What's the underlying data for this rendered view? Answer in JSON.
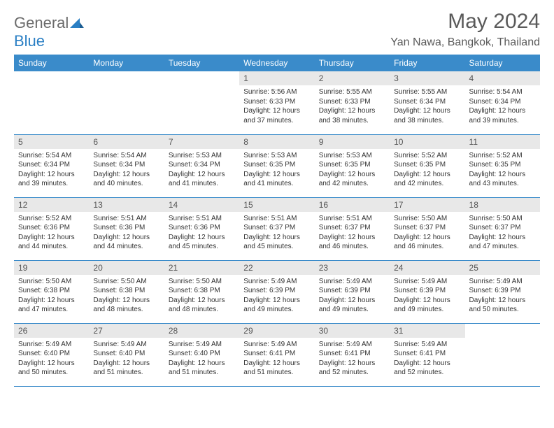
{
  "brand": {
    "part1": "General",
    "part2": "Blue"
  },
  "title": "May 2024",
  "location": "Yan Nawa, Bangkok, Thailand",
  "colors": {
    "header_bg": "#3a8bca",
    "header_text": "#ffffff",
    "daynum_bg": "#e8e8e8",
    "border": "#3a8bca",
    "brand_gray": "#6a6a6a",
    "brand_blue": "#2a7fc4"
  },
  "day_labels": [
    "Sunday",
    "Monday",
    "Tuesday",
    "Wednesday",
    "Thursday",
    "Friday",
    "Saturday"
  ],
  "weeks": [
    [
      {
        "blank": true
      },
      {
        "blank": true
      },
      {
        "blank": true
      },
      {
        "day": "1",
        "sunrise": "5:56 AM",
        "sunset": "6:33 PM",
        "daylight": "12 hours and 37 minutes."
      },
      {
        "day": "2",
        "sunrise": "5:55 AM",
        "sunset": "6:33 PM",
        "daylight": "12 hours and 38 minutes."
      },
      {
        "day": "3",
        "sunrise": "5:55 AM",
        "sunset": "6:34 PM",
        "daylight": "12 hours and 38 minutes."
      },
      {
        "day": "4",
        "sunrise": "5:54 AM",
        "sunset": "6:34 PM",
        "daylight": "12 hours and 39 minutes."
      }
    ],
    [
      {
        "day": "5",
        "sunrise": "5:54 AM",
        "sunset": "6:34 PM",
        "daylight": "12 hours and 39 minutes."
      },
      {
        "day": "6",
        "sunrise": "5:54 AM",
        "sunset": "6:34 PM",
        "daylight": "12 hours and 40 minutes."
      },
      {
        "day": "7",
        "sunrise": "5:53 AM",
        "sunset": "6:34 PM",
        "daylight": "12 hours and 41 minutes."
      },
      {
        "day": "8",
        "sunrise": "5:53 AM",
        "sunset": "6:35 PM",
        "daylight": "12 hours and 41 minutes."
      },
      {
        "day": "9",
        "sunrise": "5:53 AM",
        "sunset": "6:35 PM",
        "daylight": "12 hours and 42 minutes."
      },
      {
        "day": "10",
        "sunrise": "5:52 AM",
        "sunset": "6:35 PM",
        "daylight": "12 hours and 42 minutes."
      },
      {
        "day": "11",
        "sunrise": "5:52 AM",
        "sunset": "6:35 PM",
        "daylight": "12 hours and 43 minutes."
      }
    ],
    [
      {
        "day": "12",
        "sunrise": "5:52 AM",
        "sunset": "6:36 PM",
        "daylight": "12 hours and 44 minutes."
      },
      {
        "day": "13",
        "sunrise": "5:51 AM",
        "sunset": "6:36 PM",
        "daylight": "12 hours and 44 minutes."
      },
      {
        "day": "14",
        "sunrise": "5:51 AM",
        "sunset": "6:36 PM",
        "daylight": "12 hours and 45 minutes."
      },
      {
        "day": "15",
        "sunrise": "5:51 AM",
        "sunset": "6:37 PM",
        "daylight": "12 hours and 45 minutes."
      },
      {
        "day": "16",
        "sunrise": "5:51 AM",
        "sunset": "6:37 PM",
        "daylight": "12 hours and 46 minutes."
      },
      {
        "day": "17",
        "sunrise": "5:50 AM",
        "sunset": "6:37 PM",
        "daylight": "12 hours and 46 minutes."
      },
      {
        "day": "18",
        "sunrise": "5:50 AM",
        "sunset": "6:37 PM",
        "daylight": "12 hours and 47 minutes."
      }
    ],
    [
      {
        "day": "19",
        "sunrise": "5:50 AM",
        "sunset": "6:38 PM",
        "daylight": "12 hours and 47 minutes."
      },
      {
        "day": "20",
        "sunrise": "5:50 AM",
        "sunset": "6:38 PM",
        "daylight": "12 hours and 48 minutes."
      },
      {
        "day": "21",
        "sunrise": "5:50 AM",
        "sunset": "6:38 PM",
        "daylight": "12 hours and 48 minutes."
      },
      {
        "day": "22",
        "sunrise": "5:49 AM",
        "sunset": "6:39 PM",
        "daylight": "12 hours and 49 minutes."
      },
      {
        "day": "23",
        "sunrise": "5:49 AM",
        "sunset": "6:39 PM",
        "daylight": "12 hours and 49 minutes."
      },
      {
        "day": "24",
        "sunrise": "5:49 AM",
        "sunset": "6:39 PM",
        "daylight": "12 hours and 49 minutes."
      },
      {
        "day": "25",
        "sunrise": "5:49 AM",
        "sunset": "6:39 PM",
        "daylight": "12 hours and 50 minutes."
      }
    ],
    [
      {
        "day": "26",
        "sunrise": "5:49 AM",
        "sunset": "6:40 PM",
        "daylight": "12 hours and 50 minutes."
      },
      {
        "day": "27",
        "sunrise": "5:49 AM",
        "sunset": "6:40 PM",
        "daylight": "12 hours and 51 minutes."
      },
      {
        "day": "28",
        "sunrise": "5:49 AM",
        "sunset": "6:40 PM",
        "daylight": "12 hours and 51 minutes."
      },
      {
        "day": "29",
        "sunrise": "5:49 AM",
        "sunset": "6:41 PM",
        "daylight": "12 hours and 51 minutes."
      },
      {
        "day": "30",
        "sunrise": "5:49 AM",
        "sunset": "6:41 PM",
        "daylight": "12 hours and 52 minutes."
      },
      {
        "day": "31",
        "sunrise": "5:49 AM",
        "sunset": "6:41 PM",
        "daylight": "12 hours and 52 minutes."
      },
      {
        "blank": true
      }
    ]
  ],
  "labels": {
    "sunrise": "Sunrise:",
    "sunset": "Sunset:",
    "daylight": "Daylight:"
  }
}
